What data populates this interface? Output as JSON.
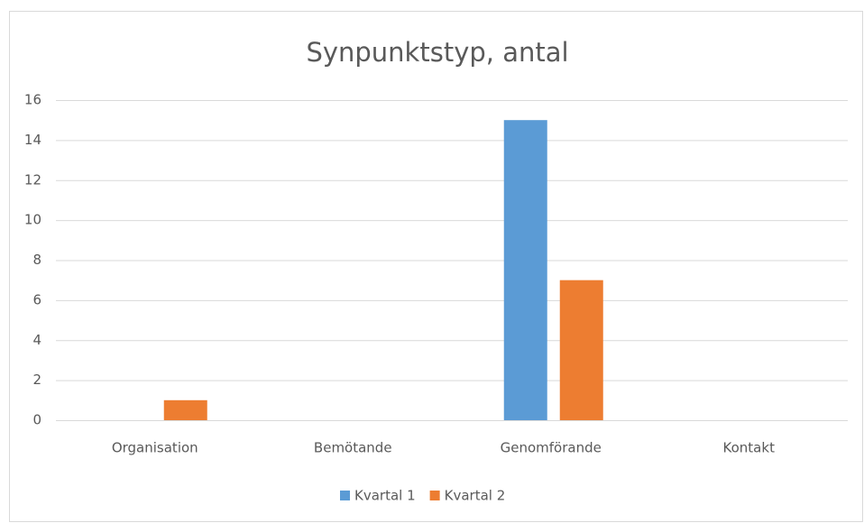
{
  "chart_data": {
    "type": "bar",
    "title": "Synpunktstyp, antal",
    "categories": [
      "Organisation",
      "Bemötande",
      "Genomförande",
      "Kontakt"
    ],
    "series": [
      {
        "name": "Kvartal 1",
        "color": "#5b9bd5",
        "values": [
          0,
          0,
          15,
          0
        ]
      },
      {
        "name": "Kvartal 2",
        "color": "#ed7d31",
        "values": [
          1,
          0,
          7,
          0
        ]
      }
    ],
    "ylim": [
      0,
      16
    ],
    "yticks": [
      0,
      2,
      4,
      6,
      8,
      10,
      12,
      14,
      16
    ],
    "grid": true,
    "legend": "bottom"
  }
}
